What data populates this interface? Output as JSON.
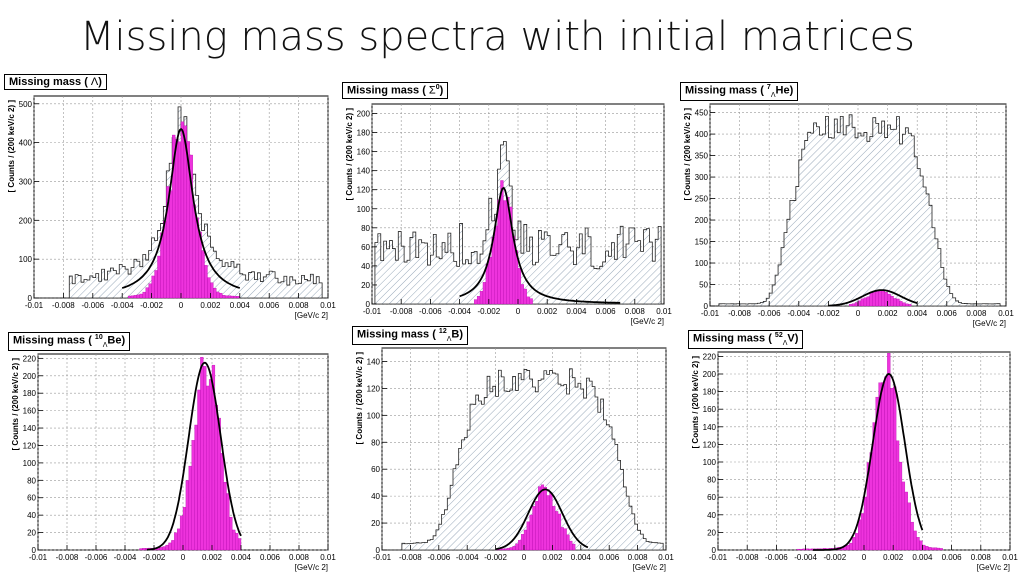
{
  "title": "Missing mass spectra with initial matrices",
  "colors": {
    "signal": "#ee33dd",
    "background_hatch": "#7f93a8",
    "fit": "#000000",
    "grid": "#999999"
  },
  "chart_data": [
    {
      "id": "lambda",
      "type": "histogram",
      "label": {
        "main": "Missing mass (",
        "sym": "Λ",
        "sup": "",
        "sub": "",
        "end": ")"
      },
      "ylabel": "[ Counts / (200 keV/c  2) ]",
      "xlabel": "[GeV/c 2]",
      "xlim": [
        -0.01,
        0.01
      ],
      "ylim": [
        0,
        520
      ],
      "xticks": [
        "-0.01",
        "-0.008",
        "-0.006",
        "-0.004",
        "-0.002",
        "0",
        "0.002",
        "0.004",
        "0.006",
        "0.008",
        "0.01"
      ],
      "yticks": [
        0,
        100,
        200,
        300,
        400,
        500
      ],
      "background": {
        "shape": "peak+flat",
        "peak_amp": 420,
        "peak_sigma": 0.0011,
        "peak_center": 0.0,
        "tail_level": 40,
        "tail_range": [
          -0.0075,
          0.0095
        ]
      },
      "signal": {
        "amp": 420,
        "center": 0.0,
        "sigma": 0.0009,
        "range": [
          -0.0035,
          0.004
        ]
      },
      "fit": {
        "amp": 435,
        "center": 0.0,
        "sigma": 0.001,
        "shape": "lorentz",
        "range": [
          -0.004,
          0.004
        ]
      }
    },
    {
      "id": "sigma0",
      "type": "histogram",
      "label": {
        "main": "Missing mass (",
        "sym": "Σ",
        "sup": "0",
        "sub": "",
        "end": ")"
      },
      "ylabel": "[ Counts / (200 keV/c  2) ]",
      "xlabel": "[GeV/c 2]",
      "xlim": [
        -0.01,
        0.01
      ],
      "ylim": [
        0,
        210
      ],
      "xticks": [
        "-0.01",
        "-0.008",
        "-0.006",
        "-0.004",
        "-0.002",
        "0",
        "0.002",
        "0.004",
        "0.006",
        "0.008",
        "0.01"
      ],
      "yticks": [
        0,
        20,
        40,
        60,
        80,
        100,
        120,
        140,
        160,
        180,
        200
      ],
      "background": {
        "shape": "peak+flat",
        "peak_amp": 110,
        "peak_sigma": 0.0006,
        "peak_center": -0.001,
        "tail_level": 55,
        "tail_range": [
          -0.0098,
          0.0098
        ]
      },
      "signal": {
        "amp": 120,
        "center": -0.001,
        "sigma": 0.0007,
        "range": [
          -0.003,
          0.001
        ]
      },
      "fit": {
        "amp": 122,
        "center": -0.001,
        "sigma": 0.0008,
        "shape": "lorentz",
        "range": [
          -0.004,
          0.007
        ]
      }
    },
    {
      "id": "he7",
      "type": "histogram",
      "label": {
        "main": "Missing mass (",
        "sym": "",
        "sup": "7",
        "sub": "Λ",
        "end": "He)"
      },
      "ylabel": "[ Counts / (200 keV/c  2) ]",
      "xlabel": "[GeV/c 2]",
      "xlim": [
        -0.01,
        0.01
      ],
      "ylim": [
        0,
        470
      ],
      "xticks": [
        "-0.01",
        "-0.008",
        "-0.006",
        "-0.004",
        "-0.002",
        "0",
        "0.002",
        "0.004",
        "0.006",
        "0.008",
        "0.01"
      ],
      "yticks": [
        0,
        50,
        100,
        150,
        200,
        250,
        300,
        350,
        400,
        450
      ],
      "background": {
        "shape": "plateau",
        "peak_amp": 410,
        "peak_sigma": 0.0038,
        "peak_center": 0.0002,
        "tail_level": 5,
        "tail_range": [
          -0.0095,
          0.0095
        ]
      },
      "signal": {
        "amp": 35,
        "center": 0.0015,
        "sigma": 0.0009,
        "range": [
          -0.0005,
          0.0035
        ]
      },
      "fit": {
        "amp": 37,
        "center": 0.0016,
        "sigma": 0.0013,
        "shape": "gauss",
        "range": [
          -0.002,
          0.004
        ]
      }
    },
    {
      "id": "be10",
      "type": "histogram",
      "label": {
        "main": "Missing mass (",
        "sym": "",
        "sup": "10",
        "sub": "Λ",
        "end": "Be)"
      },
      "ylabel": "[ Counts / (200 keV/c  2) ]",
      "xlabel": "[GeV/c 2]",
      "xlim": [
        -0.01,
        0.01
      ],
      "ylim": [
        0,
        225
      ],
      "xticks": [
        "-0.01",
        "-0.008",
        "-0.006",
        "-0.004",
        "-0.002",
        "0",
        "0.002",
        "0.004",
        "0.006",
        "0.008",
        "0.01"
      ],
      "yticks": [
        0,
        20,
        40,
        60,
        80,
        100,
        120,
        140,
        160,
        180,
        200,
        220
      ],
      "background": null,
      "signal": {
        "amp": 210,
        "center": 0.0016,
        "sigma": 0.0009,
        "range": [
          -0.003,
          0.004
        ]
      },
      "fit": {
        "amp": 215,
        "center": 0.0015,
        "sigma": 0.0011,
        "shape": "gauss",
        "range": [
          -0.0025,
          0.004
        ]
      }
    },
    {
      "id": "b12",
      "type": "histogram",
      "label": {
        "main": "Missing mass (",
        "sym": "",
        "sup": "12",
        "sub": "Λ",
        "end": "B)"
      },
      "ylabel": "[ Counts / (200 keV/c  2) ]",
      "xlabel": "[GeV/c 2]",
      "xlim": [
        -0.01,
        0.01
      ],
      "ylim": [
        0,
        150
      ],
      "xticks": [
        "-0.01",
        "-0.008",
        "-0.006",
        "-0.004",
        "-0.002",
        "0",
        "0.002",
        "0.004",
        "0.006",
        "0.008",
        "0.01"
      ],
      "yticks": [
        0,
        20,
        40,
        60,
        80,
        100,
        120,
        140
      ],
      "background": {
        "shape": "plateau",
        "peak_amp": 120,
        "peak_sigma": 0.0045,
        "peak_center": 0.001,
        "tail_level": 5,
        "tail_range": [
          -0.0085,
          0.0098
        ]
      },
      "signal": {
        "amp": 45,
        "center": 0.0015,
        "sigma": 0.0009,
        "range": [
          -0.002,
          0.0035
        ]
      },
      "fit": {
        "amp": 45,
        "center": 0.0015,
        "sigma": 0.0012,
        "shape": "gauss",
        "range": [
          -0.002,
          0.0045
        ]
      }
    },
    {
      "id": "v52",
      "type": "histogram",
      "label": {
        "main": "Missing mass (",
        "sym": "",
        "sup": "52",
        "sub": "Λ",
        "end": "V)"
      },
      "ylabel": "[ Counts / (200 keV/c  2) ]",
      "xlabel": "[GeV/c 2]",
      "xlim": [
        -0.01,
        0.01
      ],
      "ylim": [
        0,
        225
      ],
      "xticks": [
        "-0.01",
        "-0.008",
        "-0.006",
        "-0.004",
        "-0.002",
        "0",
        "0.002",
        "0.004",
        "0.006",
        "0.008",
        "0.01"
      ],
      "yticks": [
        0,
        20,
        40,
        60,
        80,
        100,
        120,
        140,
        160,
        180,
        200,
        220
      ],
      "background": null,
      "signal": {
        "amp": 205,
        "center": 0.0015,
        "sigma": 0.0009,
        "range": [
          -0.0045,
          0.0055
        ]
      },
      "fit": {
        "amp": 200,
        "center": 0.0017,
        "sigma": 0.0011,
        "shape": "gauss",
        "range": [
          -0.0035,
          0.004
        ]
      }
    }
  ]
}
